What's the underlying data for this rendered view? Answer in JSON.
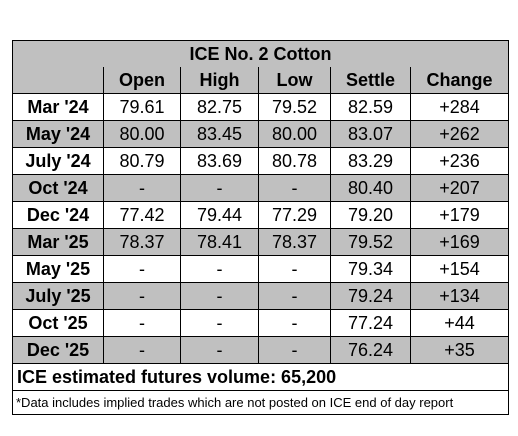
{
  "table": {
    "title": "ICE No. 2 Cotton",
    "columns": [
      "Open",
      "High",
      "Low",
      "Settle",
      "Change"
    ],
    "rows": [
      [
        "Mar '24",
        "79.61",
        "82.75",
        "79.52",
        "82.59",
        "+284"
      ],
      [
        "May '24",
        "80.00",
        "83.45",
        "80.00",
        "83.07",
        "+262"
      ],
      [
        "July '24",
        "80.79",
        "83.69",
        "80.78",
        "83.29",
        "+236"
      ],
      [
        "Oct '24",
        "-",
        "-",
        "-",
        "80.40",
        "+207"
      ],
      [
        "Dec '24",
        "77.42",
        "79.44",
        "77.29",
        "79.20",
        "+179"
      ],
      [
        "Mar '25",
        "78.37",
        "78.41",
        "78.37",
        "79.52",
        "+169"
      ],
      [
        "May '25",
        "-",
        "-",
        "-",
        "79.34",
        "+154"
      ],
      [
        "July '25",
        "-",
        "-",
        "-",
        "79.24",
        "+134"
      ],
      [
        "Oct '25",
        "-",
        "-",
        "-",
        "77.24",
        "+44"
      ],
      [
        "Dec '25",
        "-",
        "-",
        "-",
        "76.24",
        "+35"
      ]
    ],
    "volume": "ICE estimated futures volume: 65,200",
    "footnote": "*Data includes implied trades which are not posted on ICE end of day report"
  }
}
